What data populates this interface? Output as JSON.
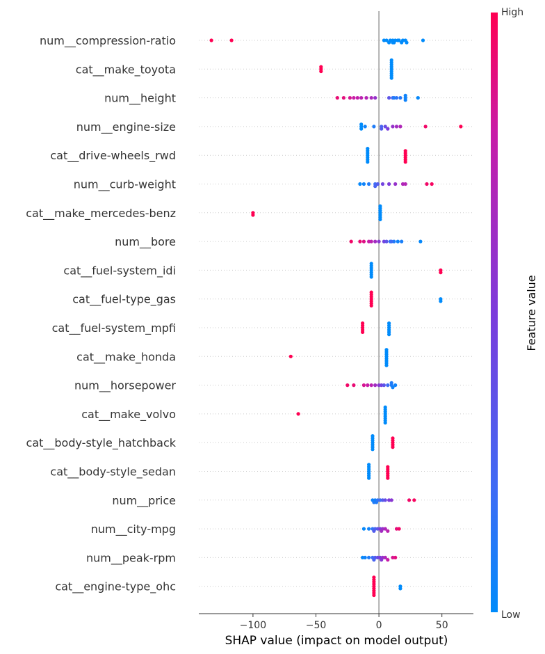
{
  "chart_data": {
    "type": "scatter",
    "subtype": "shap-beeswarm",
    "xlabel": "SHAP value (impact on model output)",
    "xlim": [
      -143,
      75
    ],
    "xticks": [
      -100,
      -50,
      0,
      50
    ],
    "xtick_labels": [
      "−100",
      "−50",
      "0",
      "50"
    ],
    "colorbar": {
      "high_label": "High",
      "low_label": "Low",
      "title": "Feature value",
      "low_color": "#008bfb",
      "high_color": "#ff0052"
    },
    "grid": false,
    "features": [
      {
        "name": "num__compression-ratio",
        "points": [
          [
            -133,
            1
          ],
          [
            -117,
            1
          ],
          [
            6,
            0
          ],
          [
            9,
            0
          ],
          [
            11,
            0
          ],
          [
            13,
            0
          ],
          [
            16,
            0
          ],
          [
            19,
            0
          ],
          [
            21,
            0
          ],
          [
            4,
            0
          ],
          [
            8,
            0
          ],
          [
            12,
            0
          ],
          [
            15,
            0
          ],
          [
            18,
            0
          ],
          [
            22,
            0
          ],
          [
            35,
            0
          ],
          [
            11,
            0
          ]
        ]
      },
      {
        "name": "cat__make_toyota",
        "points": [
          [
            -46,
            1
          ],
          [
            -46,
            1
          ],
          [
            -46,
            1
          ],
          [
            10,
            0
          ],
          [
            10,
            0
          ],
          [
            10,
            0
          ],
          [
            10,
            0
          ],
          [
            10,
            0
          ],
          [
            10,
            0
          ],
          [
            10,
            0
          ],
          [
            10,
            0
          ],
          [
            10,
            0
          ]
        ]
      },
      {
        "name": "num__height",
        "points": [
          [
            -33,
            0.92
          ],
          [
            -28,
            0.9
          ],
          [
            -23,
            0.85
          ],
          [
            -20,
            0.8
          ],
          [
            -17,
            0.78
          ],
          [
            -14,
            0.75
          ],
          [
            -10,
            0.72
          ],
          [
            -6,
            0.68
          ],
          [
            -3,
            0.6
          ],
          [
            8,
            0.35
          ],
          [
            11,
            0.2
          ],
          [
            14,
            0.15
          ],
          [
            21,
            0.05
          ],
          [
            21,
            0.05
          ],
          [
            21,
            0.05
          ],
          [
            31,
            0.02
          ],
          [
            12,
            0.1
          ],
          [
            17,
            0.12
          ]
        ]
      },
      {
        "name": "num__engine-size",
        "points": [
          [
            -14,
            0
          ],
          [
            -14,
            0
          ],
          [
            -14,
            0
          ],
          [
            -11,
            0.05
          ],
          [
            -4,
            0.1
          ],
          [
            2,
            0.25
          ],
          [
            2,
            0.3
          ],
          [
            5,
            0.4
          ],
          [
            7,
            0.5
          ],
          [
            11,
            0.6
          ],
          [
            14,
            0.65
          ],
          [
            17,
            0.7
          ],
          [
            37,
            0.95
          ],
          [
            65,
            1
          ]
        ]
      },
      {
        "name": "cat__drive-wheels_rwd",
        "points": [
          [
            -9,
            0
          ],
          [
            -9,
            0
          ],
          [
            -9,
            0
          ],
          [
            -9,
            0
          ],
          [
            -9,
            0
          ],
          [
            -9,
            0
          ],
          [
            -9,
            0
          ],
          [
            21,
            1
          ],
          [
            21,
            1
          ],
          [
            21,
            1
          ],
          [
            21,
            1
          ],
          [
            21,
            1
          ],
          [
            21,
            1
          ]
        ]
      },
      {
        "name": "num__curb-weight",
        "points": [
          [
            -15,
            0.02
          ],
          [
            -12,
            0.05
          ],
          [
            -8,
            0.1
          ],
          [
            -3,
            0.2
          ],
          [
            -3,
            0.25
          ],
          [
            -1,
            0.3
          ],
          [
            3,
            0.45
          ],
          [
            8,
            0.5
          ],
          [
            13,
            0.6
          ],
          [
            19,
            0.7
          ],
          [
            21,
            0.72
          ],
          [
            38,
            0.95
          ],
          [
            42,
            0.97
          ]
        ]
      },
      {
        "name": "cat__make_mercedes-benz",
        "points": [
          [
            -100,
            1
          ],
          [
            -100,
            1
          ],
          [
            1,
            0
          ],
          [
            1,
            0
          ],
          [
            1,
            0
          ],
          [
            1,
            0
          ],
          [
            1,
            0
          ],
          [
            1,
            0
          ],
          [
            1,
            0
          ]
        ]
      },
      {
        "name": "num__bore",
        "points": [
          [
            -22,
            0.95
          ],
          [
            -15,
            0.92
          ],
          [
            -12,
            0.88
          ],
          [
            -8,
            0.8
          ],
          [
            -6,
            0.75
          ],
          [
            -3,
            0.65
          ],
          [
            0,
            0.55
          ],
          [
            4,
            0.45
          ],
          [
            6,
            0.35
          ],
          [
            9,
            0.15
          ],
          [
            12,
            0.1
          ],
          [
            15,
            0.05
          ],
          [
            18,
            0.08
          ],
          [
            33,
            0.02
          ],
          [
            10,
            0.2
          ]
        ]
      },
      {
        "name": "cat__fuel-system_idi",
        "points": [
          [
            -6,
            0
          ],
          [
            -6,
            0
          ],
          [
            -6,
            0
          ],
          [
            -6,
            0
          ],
          [
            -6,
            0
          ],
          [
            -6,
            0
          ],
          [
            -6,
            0
          ],
          [
            49,
            1
          ],
          [
            49,
            1
          ]
        ]
      },
      {
        "name": "cat__fuel-type_gas",
        "points": [
          [
            -6,
            1
          ],
          [
            -6,
            1
          ],
          [
            -6,
            1
          ],
          [
            -6,
            1
          ],
          [
            -6,
            1
          ],
          [
            -6,
            1
          ],
          [
            -6,
            1
          ],
          [
            49,
            0
          ],
          [
            49,
            0
          ]
        ]
      },
      {
        "name": "cat__fuel-system_mpfi",
        "points": [
          [
            -13,
            1
          ],
          [
            -13,
            1
          ],
          [
            -13,
            1
          ],
          [
            -13,
            1
          ],
          [
            -13,
            1
          ],
          [
            8,
            0
          ],
          [
            8,
            0
          ],
          [
            8,
            0
          ],
          [
            8,
            0
          ],
          [
            8,
            0
          ],
          [
            8,
            0
          ]
        ]
      },
      {
        "name": "cat__make_honda",
        "points": [
          [
            -70,
            1
          ],
          [
            6,
            0
          ],
          [
            6,
            0
          ],
          [
            6,
            0
          ],
          [
            6,
            0
          ],
          [
            6,
            0
          ],
          [
            6,
            0
          ],
          [
            6,
            0
          ],
          [
            6,
            0
          ]
        ]
      },
      {
        "name": "num__horsepower",
        "points": [
          [
            -25,
            0.95
          ],
          [
            -20,
            0.92
          ],
          [
            -12,
            0.85
          ],
          [
            -9,
            0.8
          ],
          [
            -6,
            0.75
          ],
          [
            -3,
            0.65
          ],
          [
            0,
            0.55
          ],
          [
            2,
            0.45
          ],
          [
            4,
            0.35
          ],
          [
            7,
            0.2
          ],
          [
            10,
            0.1
          ],
          [
            13,
            0.05
          ],
          [
            11,
            0.05
          ],
          [
            10,
            0.1
          ]
        ]
      },
      {
        "name": "cat__make_volvo",
        "points": [
          [
            -64,
            1
          ],
          [
            5,
            0
          ],
          [
            5,
            0
          ],
          [
            5,
            0
          ],
          [
            5,
            0
          ],
          [
            5,
            0
          ],
          [
            5,
            0
          ],
          [
            5,
            0
          ],
          [
            5,
            0
          ]
        ]
      },
      {
        "name": "cat__body-style_hatchback",
        "points": [
          [
            -5,
            0
          ],
          [
            -5,
            0
          ],
          [
            -5,
            0
          ],
          [
            -5,
            0
          ],
          [
            -5,
            0
          ],
          [
            -5,
            0
          ],
          [
            -5,
            0
          ],
          [
            11,
            1
          ],
          [
            11,
            1
          ],
          [
            11,
            1
          ],
          [
            11,
            1
          ],
          [
            11,
            1
          ]
        ]
      },
      {
        "name": "cat__body-style_sedan",
        "points": [
          [
            -8,
            0
          ],
          [
            -8,
            0
          ],
          [
            -8,
            0
          ],
          [
            -8,
            0
          ],
          [
            -8,
            0
          ],
          [
            -8,
            0
          ],
          [
            -8,
            0
          ],
          [
            7,
            1
          ],
          [
            7,
            1
          ],
          [
            7,
            1
          ],
          [
            7,
            1
          ],
          [
            7,
            1
          ],
          [
            7,
            1
          ]
        ]
      },
      {
        "name": "num__price",
        "points": [
          [
            -5,
            0.05
          ],
          [
            -3,
            0.05
          ],
          [
            -2,
            0.1
          ],
          [
            -1,
            0.15
          ],
          [
            1,
            0.2
          ],
          [
            3,
            0.3
          ],
          [
            5,
            0.4
          ],
          [
            8,
            0.5
          ],
          [
            10,
            0.55
          ],
          [
            24,
            0.95
          ],
          [
            28,
            0.97
          ],
          [
            -4,
            0.1
          ]
        ]
      },
      {
        "name": "num__city-mpg",
        "points": [
          [
            -12,
            0.02
          ],
          [
            -8,
            0.05
          ],
          [
            -5,
            0.15
          ],
          [
            -3,
            0.25
          ],
          [
            -1,
            0.35
          ],
          [
            1,
            0.5
          ],
          [
            3,
            0.6
          ],
          [
            5,
            0.7
          ],
          [
            7,
            0.75
          ],
          [
            14,
            0.9
          ],
          [
            16,
            0.95
          ],
          [
            2,
            0.65
          ],
          [
            -4,
            0.3
          ]
        ]
      },
      {
        "name": "num__peak-rpm",
        "points": [
          [
            -13,
            0.02
          ],
          [
            -11,
            0.05
          ],
          [
            -8,
            0.1
          ],
          [
            -5,
            0.2
          ],
          [
            -3,
            0.3
          ],
          [
            -1,
            0.4
          ],
          [
            1,
            0.5
          ],
          [
            3,
            0.6
          ],
          [
            5,
            0.7
          ],
          [
            7,
            0.8
          ],
          [
            11,
            0.85
          ],
          [
            13,
            0.9
          ],
          [
            -4,
            0.25
          ],
          [
            2,
            0.55
          ]
        ]
      },
      {
        "name": "cat__engine-type_ohc",
        "points": [
          [
            -4,
            1
          ],
          [
            -4,
            1
          ],
          [
            -4,
            1
          ],
          [
            -4,
            1
          ],
          [
            -4,
            1
          ],
          [
            -4,
            1
          ],
          [
            -4,
            1
          ],
          [
            -4,
            1
          ],
          [
            -4,
            1
          ],
          [
            17,
            0
          ],
          [
            17,
            0
          ]
        ]
      }
    ]
  }
}
